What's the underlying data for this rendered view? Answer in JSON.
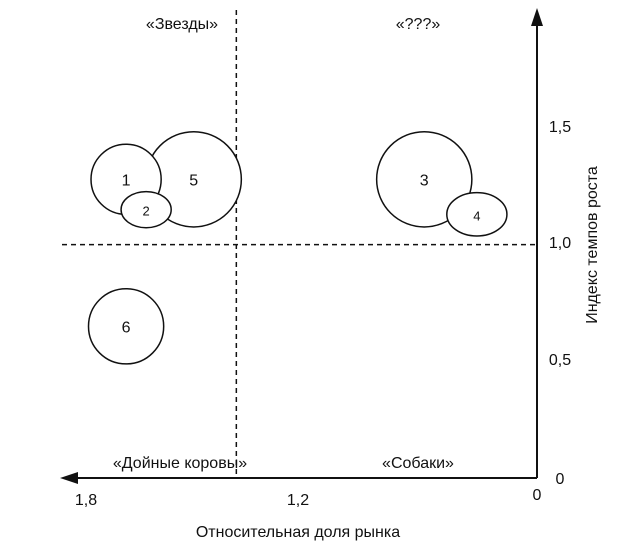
{
  "chart_data": {
    "type": "scatter",
    "title": "",
    "xlabel": "Относительная доля рынка",
    "ylabel": "Индекс темпов роста",
    "x_reversed": true,
    "xlim": [
      1.8,
      0
    ],
    "ylim": [
      0,
      2.0
    ],
    "x_ticks": [
      "1,8",
      "1,2",
      "0"
    ],
    "y_ticks": [
      "0",
      "0,5",
      "1,0",
      "1,5"
    ],
    "x_tick_values": [
      1.8,
      1.2,
      0
    ],
    "y_tick_values": [
      0,
      0.5,
      1.0,
      1.5
    ],
    "divider_x": 1.2,
    "divider_y": 1.0,
    "grid": false,
    "quadrants": {
      "top_left": "«Звезды»",
      "top_right": "«???»",
      "bottom_left": "«Дойные коровы»",
      "bottom_right": "«Собаки»"
    },
    "points": [
      {
        "label": "1",
        "x": 1.64,
        "y": 1.28,
        "r": 0.14
      },
      {
        "label": "2",
        "x": 1.56,
        "y": 1.15,
        "r": 0.1
      },
      {
        "label": "5",
        "x": 1.37,
        "y": 1.28,
        "r": 0.19
      },
      {
        "label": "3",
        "x": 0.45,
        "y": 1.28,
        "r": 0.19
      },
      {
        "label": "4",
        "x": 0.24,
        "y": 1.13,
        "r": 0.12
      },
      {
        "label": "6",
        "x": 1.64,
        "y": 0.65,
        "r": 0.15
      }
    ]
  }
}
